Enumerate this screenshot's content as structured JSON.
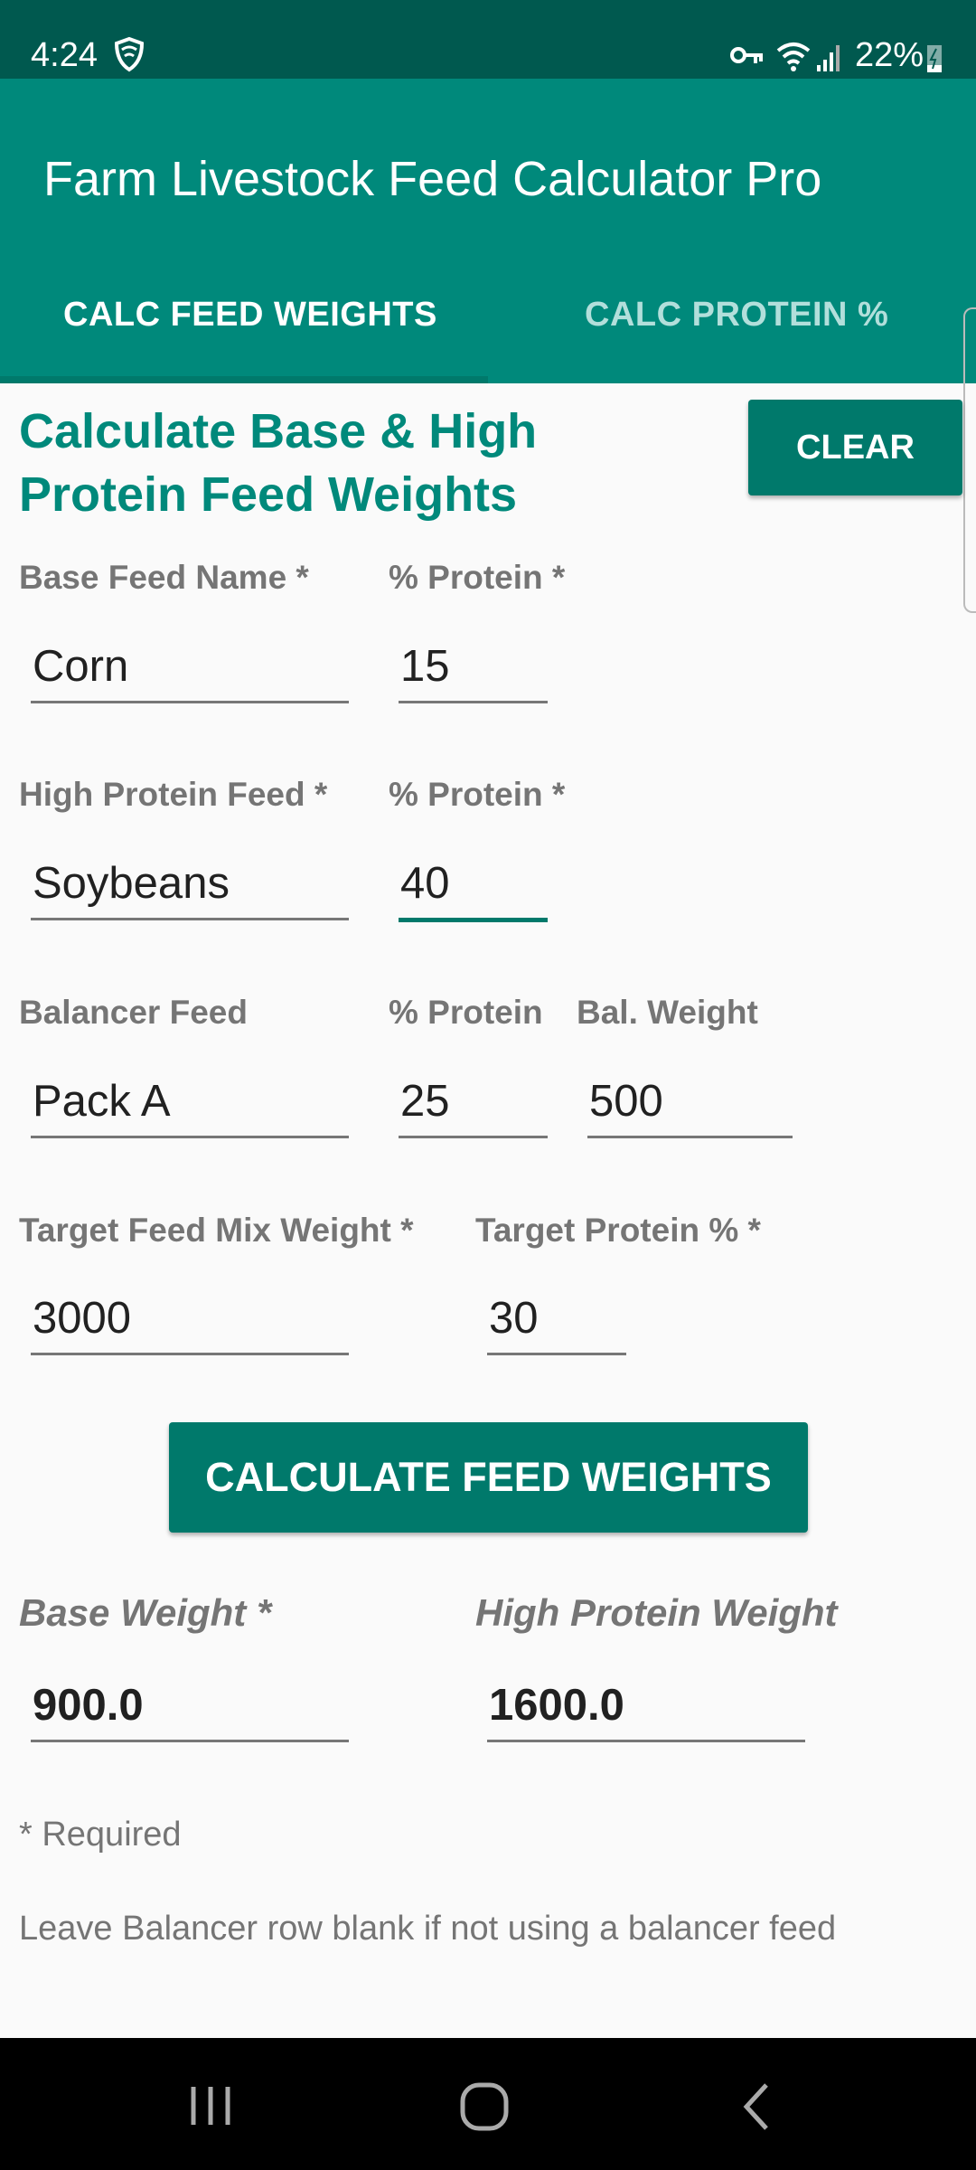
{
  "status_bar": {
    "time": "4:24",
    "battery": "22%",
    "icons": [
      "vpn-shield-icon",
      "key-icon",
      "wifi-icon",
      "signal-icon",
      "battery-charging-icon"
    ]
  },
  "app_bar": {
    "title": "Farm Livestock Feed Calculator Pro"
  },
  "tabs": [
    {
      "label": "CALC FEED WEIGHTS",
      "selected": true
    },
    {
      "label": "CALC PROTEIN %",
      "selected": false
    }
  ],
  "colors": {
    "primary": "#00897b",
    "primary_dark": "#00594f",
    "button": "#00796b"
  },
  "form": {
    "heading": "Calculate Base & High Protein Feed Weights",
    "clear_label": "CLEAR",
    "base_feed": {
      "name_label": "Base Feed Name *",
      "name": "Corn",
      "protein_label": "% Protein *",
      "protein": "15"
    },
    "high_feed": {
      "name_label": "High Protein Feed *",
      "name": "Soybeans",
      "protein_label": "% Protein *",
      "protein": "40"
    },
    "balancer": {
      "name_label": "Balancer Feed",
      "name": "Pack A",
      "protein_label": "% Protein",
      "protein": "25",
      "weight_label": "Bal. Weight",
      "weight": "500"
    },
    "target": {
      "mix_label": "Target Feed Mix Weight *",
      "mix": "3000",
      "protein_label": "Target Protein % *",
      "protein": "30"
    },
    "calculate_label": "CALCULATE FEED WEIGHTS",
    "results": {
      "base_label": "Base Weight *",
      "base": "900.0",
      "high_label": "High Protein Weight",
      "high": "1600.0"
    },
    "required_note": "* Required",
    "balancer_note": "Leave Balancer row blank if not using a balancer feed"
  }
}
